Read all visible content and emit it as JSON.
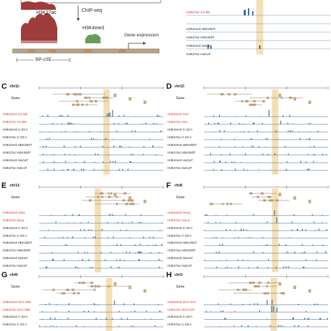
{
  "panel_a": {
    "h3k27ac": "H3K27ac",
    "h3k4me3": "H3K4me3",
    "chipseq": "ChIP-seq",
    "gene_expression": "Gene expression",
    "region": "BP-cSE"
  },
  "panel_b": {
    "tracks": [
      {
        "label": "H3K27ac  Ca Ski",
        "red": true
      },
      {
        "label": "H3K4me3  HEK293T",
        "red": false
      },
      {
        "label": "H3K27ac  HEK293T",
        "red": false
      },
      {
        "label": "H3K4me3  HaCaT",
        "red": false
      },
      {
        "label": "H3K27ac  HaCaT",
        "red": false
      }
    ]
  },
  "panels": [
    {
      "letter": "C",
      "chr": "chr11:",
      "gene": "Gene",
      "tracks": [
        {
          "label": "H3K4me3  Ca Ski",
          "red": true
        },
        {
          "label": "H3K27ac  Ca Ski",
          "red": true
        },
        {
          "label": "H3K4me3  C-33 A",
          "red": false
        },
        {
          "label": "H3K27ac  C-33 A",
          "red": false
        },
        {
          "label": "H3K4me3  HEK293T",
          "red": false
        },
        {
          "label": "H3K27ac  HEK293T",
          "red": false
        },
        {
          "label": "H3K4me3  HaCaT",
          "red": false
        },
        {
          "label": "H3K27ac  HaCaT",
          "red": false
        }
      ]
    },
    {
      "letter": "D",
      "chr": "chr12:",
      "gene": "Gene",
      "tracks": [
        {
          "label": "H3K4me3  S12",
          "red": true
        },
        {
          "label": "H3K27ac  S12",
          "red": true
        },
        {
          "label": "H3K4me3  C-33 A",
          "red": false
        },
        {
          "label": "H3K27ac  C-33 A",
          "red": false
        },
        {
          "label": "H3K4me3  HEK293T",
          "red": false
        },
        {
          "label": "H3K27ac  HEK293T",
          "red": false
        },
        {
          "label": "H3K4me3  HaCaT",
          "red": false
        },
        {
          "label": "H3K27ac  HaCaT",
          "red": false
        }
      ]
    },
    {
      "letter": "E",
      "chr": "chr13:",
      "gene": "Gene",
      "tracks": [
        {
          "label": "H3K4me3  SiHa",
          "red": true
        },
        {
          "label": "H3K27ac  SiHa",
          "red": true
        },
        {
          "label": "H3K4me3  C-33 A",
          "red": false
        },
        {
          "label": "H3K27ac  C-33 A",
          "red": false
        },
        {
          "label": "H3K4me3  HEK293T",
          "red": false
        },
        {
          "label": "H3K27ac  HEK293T",
          "red": false
        },
        {
          "label": "H3K4me3  HaCaT",
          "red": false
        },
        {
          "label": "H3K27ac  HaCaT",
          "red": false
        }
      ]
    },
    {
      "letter": "F",
      "chr": "chr8:",
      "gene": "Gene",
      "tracks": [
        {
          "label": "H3K4me3  HeLa",
          "red": true
        },
        {
          "label": "H3K27ac  HeLa",
          "red": true
        },
        {
          "label": "H3K4me3  C-33 A",
          "red": false
        },
        {
          "label": "H3K27ac  C-33 A",
          "red": false
        },
        {
          "label": "H3K4me3  HEK293T",
          "red": false
        },
        {
          "label": "H3K27ac  HEK293T",
          "red": false
        },
        {
          "label": "H3K4me3  HaCaT",
          "red": false
        },
        {
          "label": "H3K27ac  HaCaT",
          "red": false
        }
      ]
    },
    {
      "letter": "G",
      "chr": "chr8:",
      "gene": "Gene",
      "tracks": [
        {
          "label": "H3K4me3  SCC-090",
          "red": true
        },
        {
          "label": "H3K27ac  SCC-090",
          "red": true
        },
        {
          "label": "H3K4me3  C-33 A",
          "red": false
        },
        {
          "label": "H3K27ac  C-33 A",
          "red": false
        }
      ]
    },
    {
      "letter": "H",
      "chr": "chr3:",
      "gene": "Gene",
      "tracks": [
        {
          "label": "H3K4me3  SCC-047",
          "red": true
        },
        {
          "label": "H3K27ac  SCC-047",
          "red": true
        },
        {
          "label": "H3K4me3  C-33 A",
          "red": false
        },
        {
          "label": "H3K27ac  C-33 A",
          "red": false
        }
      ]
    }
  ]
}
